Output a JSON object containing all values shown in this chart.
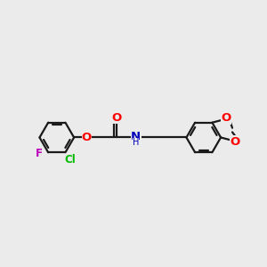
{
  "bg_color": "#ebebeb",
  "bond_color": "#1a1a1a",
  "bond_width": 1.6,
  "atom_colors": {
    "O": "#ff0000",
    "N": "#0000bb",
    "Cl": "#00bb00",
    "F": "#bb00bb",
    "C": "#1a1a1a",
    "H": "#1a1a1a"
  },
  "font_size": 8.5,
  "fig_width": 3.0,
  "fig_height": 3.0,
  "dpi": 100
}
